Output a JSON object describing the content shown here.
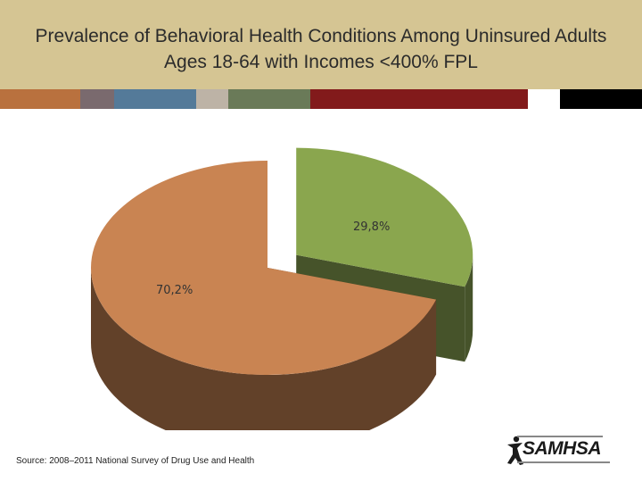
{
  "title": "Prevalence of Behavioral Health Conditions Among Uninsured Adults Ages 18-64 with Incomes <400% FPL",
  "colors": {
    "title_band": "#d5c593",
    "stripes": [
      "#b9713e",
      "#7a6a6e",
      "#547a99",
      "#bdb3a6",
      "#6a7a58",
      "#821a1b",
      "#ffffff",
      "#000000"
    ]
  },
  "chart_data": {
    "type": "pie",
    "title": "Prevalence of Behavioral Health Conditions Among Uninsured Adults Ages 18-64 with Incomes <400% FPL",
    "style": "3d-exploded",
    "slices": [
      {
        "label": "29,8%",
        "value": 29.8,
        "color": "#8aa64e",
        "side_color": "#46532a",
        "exploded": true
      },
      {
        "label": "70,2%",
        "value": 70.2,
        "color": "#c98452",
        "side_color": "#624129",
        "exploded": false
      }
    ]
  },
  "footer": {
    "source": "Source: 2008–2011 National Survey of Drug Use and Health"
  },
  "logo": {
    "text": "SAMHSA",
    "icon": "person-figure-icon"
  }
}
